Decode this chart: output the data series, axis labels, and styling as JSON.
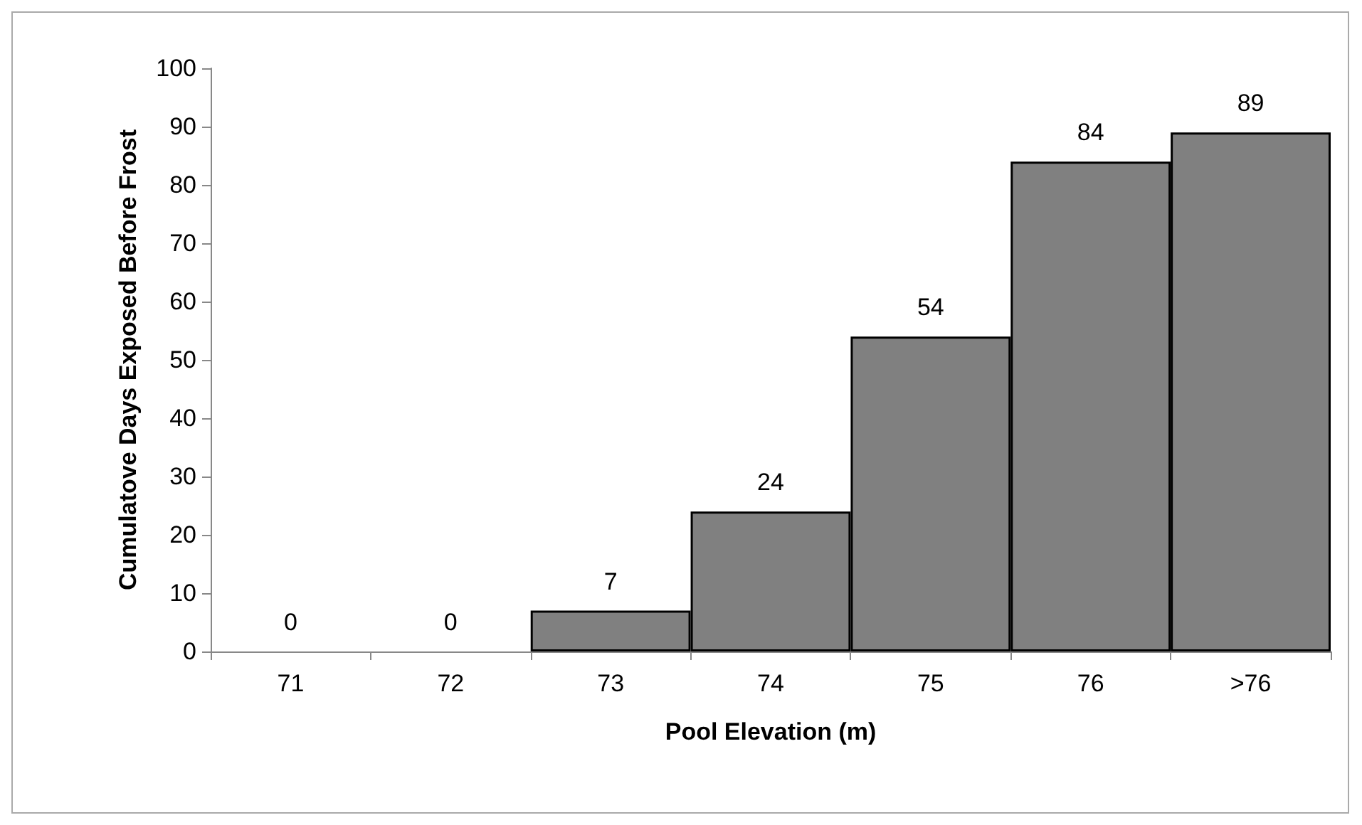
{
  "chart_data": {
    "type": "bar",
    "categories": [
      "71",
      "72",
      "73",
      "74",
      "75",
      "76",
      ">76"
    ],
    "values": [
      0,
      0,
      7,
      24,
      54,
      84,
      89
    ],
    "color": "#808080",
    "xlabel": "Pool Elevation (m)",
    "ylabel": "Cumulatove Days Exposed Before Frost",
    "ylim": [
      0,
      100
    ],
    "yticks": [
      0,
      10,
      20,
      30,
      40,
      50,
      60,
      70,
      80,
      90,
      100
    ],
    "data_labels": true,
    "grid": false
  }
}
